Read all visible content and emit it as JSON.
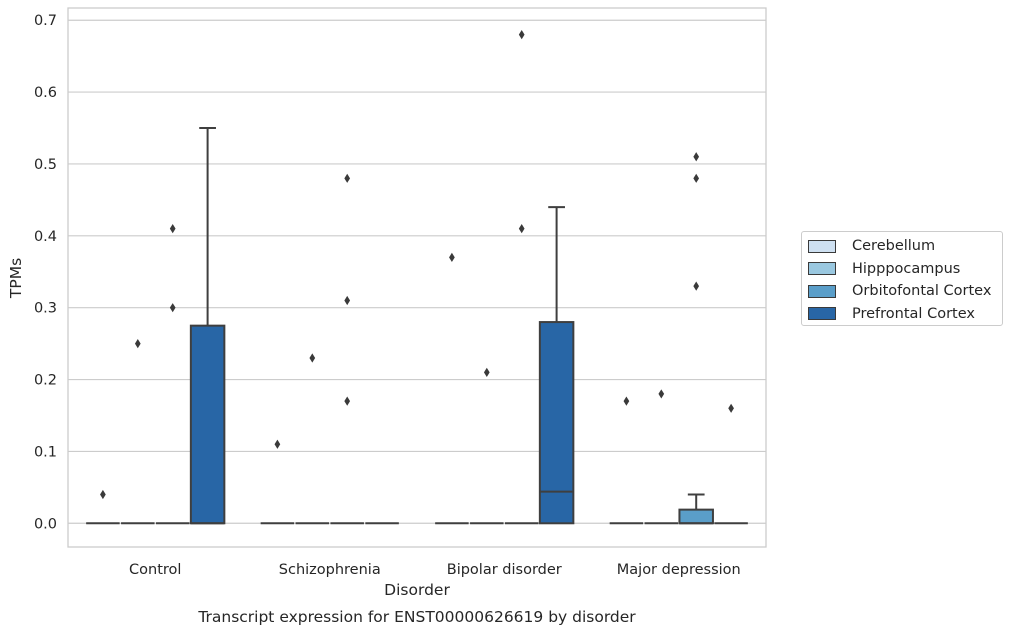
{
  "caption": "Transcript expression for ENST00000626619 by disorder",
  "chart_data": {
    "type": "box",
    "xlabel": "Disorder",
    "ylabel": "TPMs",
    "ylim": [
      -0.033,
      0.717
    ],
    "yticks": [
      "0.0",
      "0.1",
      "0.2",
      "0.3",
      "0.4",
      "0.5",
      "0.6",
      "0.7"
    ],
    "grid": "horizontal",
    "legend_position": "right",
    "categories": [
      "Control",
      "Schizophrenia",
      "Bipolar disorder",
      "Major depression"
    ],
    "series": [
      {
        "name": "Cerebellum",
        "color": "#cee0f1",
        "boxes": [
          {
            "q1": 0,
            "median": 0,
            "q3": 0,
            "whisker_low": 0,
            "whisker_high": 0,
            "outliers": [
              0.04
            ]
          },
          {
            "q1": 0,
            "median": 0,
            "q3": 0,
            "whisker_low": 0,
            "whisker_high": 0,
            "outliers": [
              0.11
            ]
          },
          {
            "q1": 0,
            "median": 0,
            "q3": 0,
            "whisker_low": 0,
            "whisker_high": 0,
            "outliers": [
              0.37
            ]
          },
          {
            "q1": 0,
            "median": 0,
            "q3": 0,
            "whisker_low": 0,
            "whisker_high": 0,
            "outliers": [
              0.17
            ]
          }
        ]
      },
      {
        "name": "Hipppocampus",
        "color": "#9ac8e0",
        "boxes": [
          {
            "q1": 0,
            "median": 0,
            "q3": 0,
            "whisker_low": 0,
            "whisker_high": 0,
            "outliers": [
              0.25
            ]
          },
          {
            "q1": 0,
            "median": 0,
            "q3": 0,
            "whisker_low": 0,
            "whisker_high": 0,
            "outliers": [
              0.23
            ]
          },
          {
            "q1": 0,
            "median": 0,
            "q3": 0,
            "whisker_low": 0,
            "whisker_high": 0,
            "outliers": [
              0.21
            ]
          },
          {
            "q1": 0,
            "median": 0,
            "q3": 0,
            "whisker_low": 0,
            "whisker_high": 0,
            "outliers": [
              0.18
            ]
          }
        ]
      },
      {
        "name": "Orbitofontal Cortex",
        "color": "#5a9ec9",
        "boxes": [
          {
            "q1": 0,
            "median": 0,
            "q3": 0,
            "whisker_low": 0,
            "whisker_high": 0,
            "outliers": [
              0.3,
              0.41
            ]
          },
          {
            "q1": 0,
            "median": 0,
            "q3": 0,
            "whisker_low": 0,
            "whisker_high": 0,
            "outliers": [
              0.17,
              0.31,
              0.48
            ]
          },
          {
            "q1": 0,
            "median": 0,
            "q3": 0,
            "whisker_low": 0,
            "whisker_high": 0,
            "outliers": [
              0.41,
              0.68
            ]
          },
          {
            "q1": 0,
            "median": 0,
            "q3": 0.019,
            "whisker_low": 0,
            "whisker_high": 0.04,
            "outliers": [
              0.33,
              0.48,
              0.51
            ]
          }
        ]
      },
      {
        "name": "Prefrontal Cortex",
        "color": "#2866a6",
        "boxes": [
          {
            "q1": 0,
            "median": 0,
            "q3": 0.275,
            "whisker_low": 0,
            "whisker_high": 0.55,
            "outliers": []
          },
          {
            "q1": 0,
            "median": 0,
            "q3": 0,
            "whisker_low": 0,
            "whisker_high": 0,
            "outliers": []
          },
          {
            "q1": 0,
            "median": 0.044,
            "q3": 0.28,
            "whisker_low": 0,
            "whisker_high": 0.44,
            "outliers": []
          },
          {
            "q1": 0,
            "median": 0,
            "q3": 0,
            "whisker_low": 0,
            "whisker_high": 0,
            "outliers": [
              0.16
            ]
          }
        ]
      }
    ]
  }
}
